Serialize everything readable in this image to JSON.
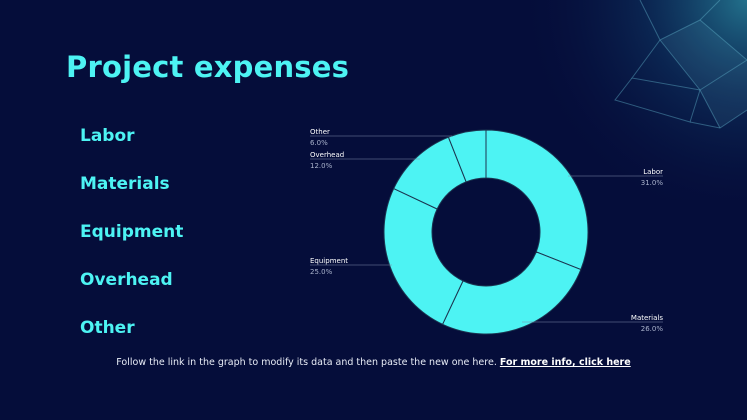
{
  "slide": {
    "title": "Project expenses",
    "legend_items": [
      "Labor",
      "Materials",
      "Equipment",
      "Overhead",
      "Other"
    ],
    "footer_text": "Follow the link in the graph to modify its data and then paste the new one here.",
    "footer_link": "For more info, click here"
  },
  "colors": {
    "background": "#050d3a",
    "accent": "#4df3f3",
    "text": "#e8ecf6",
    "segment_border": "#1a3550"
  },
  "chart_data": {
    "type": "pie",
    "donut": true,
    "categories": [
      "Labor",
      "Materials",
      "Equipment",
      "Overhead",
      "Other"
    ],
    "values": [
      31.0,
      26.0,
      25.0,
      12.0,
      6.0
    ],
    "value_labels": [
      "31.0%",
      "26.0%",
      "25.0%",
      "12.0%",
      "6.0%"
    ],
    "title": ""
  }
}
